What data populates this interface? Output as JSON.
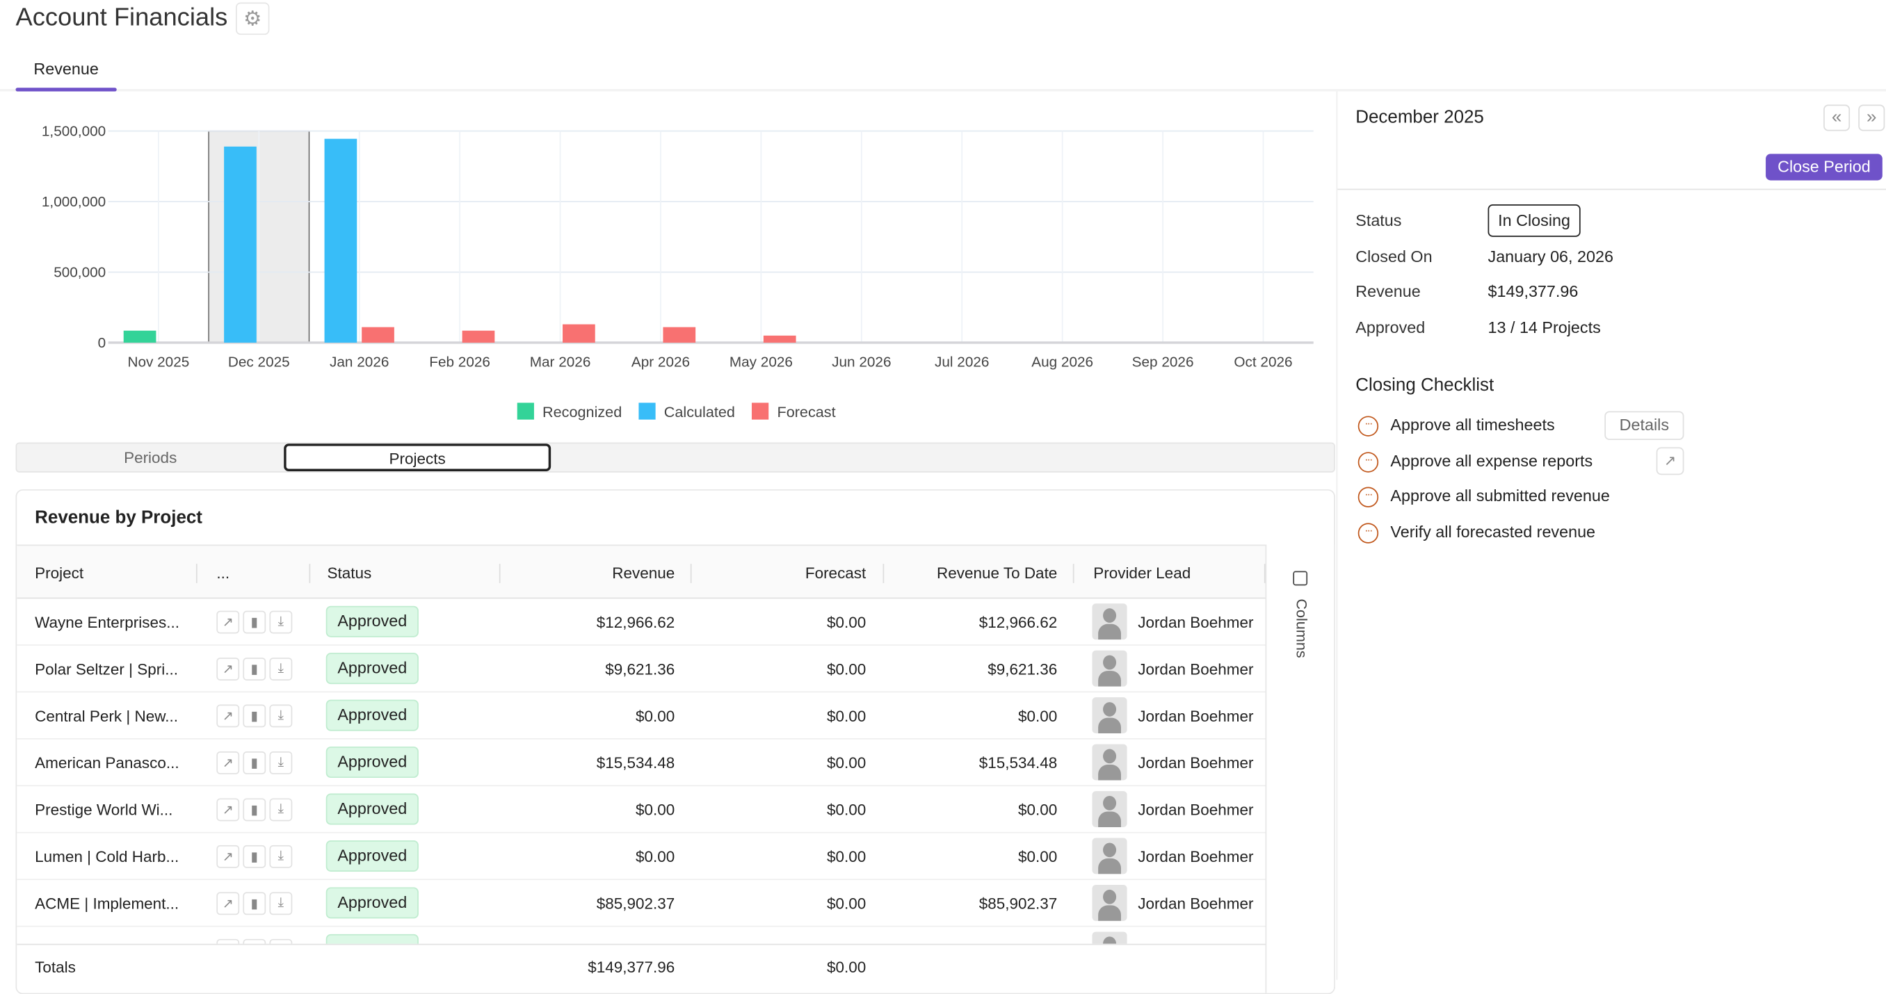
{
  "header": {
    "title": "Account Financials",
    "settings_icon": "gear-icon"
  },
  "tabs": [
    {
      "label": "Revenue",
      "active": true
    }
  ],
  "chart_data": {
    "type": "bar",
    "categories": [
      "Nov 2025",
      "Dec 2025",
      "Jan 2026",
      "Feb 2026",
      "Mar 2026",
      "Apr 2026",
      "May 2026",
      "Jun 2026",
      "Jul 2026",
      "Aug 2026",
      "Sep 2026",
      "Oct 2026"
    ],
    "series": [
      {
        "name": "Recognized",
        "color": "#33d398",
        "values": [
          85000,
          null,
          null,
          null,
          null,
          null,
          null,
          null,
          null,
          null,
          null,
          null
        ]
      },
      {
        "name": "Calculated",
        "color": "#38bdf8",
        "values": [
          null,
          1390000,
          1445000,
          null,
          null,
          null,
          null,
          null,
          null,
          null,
          null,
          null
        ]
      },
      {
        "name": "Forecast",
        "color": "#f87171",
        "values": [
          null,
          null,
          110000,
          85000,
          130000,
          110000,
          50000,
          null,
          null,
          null,
          null,
          null
        ]
      }
    ],
    "yticks": [
      "0",
      "500,000",
      "1,000,000",
      "1,500,000"
    ],
    "ytick_values": [
      0,
      500000,
      1000000,
      1500000
    ],
    "ylim": [
      0,
      1500000
    ],
    "highlighted_category": "Dec 2025",
    "legend_position": "bottom",
    "grid": true
  },
  "view_toggle": {
    "options": [
      "Periods",
      "Projects"
    ],
    "selected": "Projects"
  },
  "table": {
    "title": "Revenue by Project",
    "columns": [
      "Project",
      "...",
      "Status",
      "Revenue",
      "Forecast",
      "Revenue To Date",
      "Provider Lead"
    ],
    "side_label": "Columns",
    "rows": [
      {
        "project": "Wayne Enterprises...",
        "status": "Approved",
        "revenue": "$12,966.62",
        "forecast": "$0.00",
        "to_date": "$12,966.62",
        "lead": "Jordan Boehmer"
      },
      {
        "project": "Polar Seltzer | Spri...",
        "status": "Approved",
        "revenue": "$9,621.36",
        "forecast": "$0.00",
        "to_date": "$9,621.36",
        "lead": "Jordan Boehmer"
      },
      {
        "project": "Central Perk | New...",
        "status": "Approved",
        "revenue": "$0.00",
        "forecast": "$0.00",
        "to_date": "$0.00",
        "lead": "Jordan Boehmer"
      },
      {
        "project": "American Panasco...",
        "status": "Approved",
        "revenue": "$15,534.48",
        "forecast": "$0.00",
        "to_date": "$15,534.48",
        "lead": "Jordan Boehmer"
      },
      {
        "project": "Prestige World Wi...",
        "status": "Approved",
        "revenue": "$0.00",
        "forecast": "$0.00",
        "to_date": "$0.00",
        "lead": "Jordan Boehmer"
      },
      {
        "project": "Lumen | Cold Harb...",
        "status": "Approved",
        "revenue": "$0.00",
        "forecast": "$0.00",
        "to_date": "$0.00",
        "lead": "Jordan Boehmer"
      },
      {
        "project": "ACME | Implement...",
        "status": "Approved",
        "revenue": "$85,902.37",
        "forecast": "$0.00",
        "to_date": "$85,902.37",
        "lead": "Jordan Boehmer"
      }
    ],
    "totals": {
      "label": "Totals",
      "revenue": "$149,377.96",
      "forecast": "$0.00"
    }
  },
  "period_panel": {
    "title": "December 2025",
    "close_button": "Close Period",
    "fields": [
      {
        "label": "Status",
        "value": "In Closing"
      },
      {
        "label": "Closed On",
        "value": "January 06, 2026"
      },
      {
        "label": "Revenue",
        "value": "$149,377.96"
      },
      {
        "label": "Approved",
        "value": "13 / 14 Projects"
      }
    ],
    "checklist_title": "Closing Checklist",
    "checklist": [
      "Approve all timesheets",
      "Approve all expense reports",
      "Approve all submitted revenue",
      "Verify all forecasted revenue"
    ],
    "details_button": "Details"
  },
  "colors": {
    "accent": "#6f52c9",
    "approved_bg": "#dcf8e6",
    "pending": "#c0561a"
  }
}
